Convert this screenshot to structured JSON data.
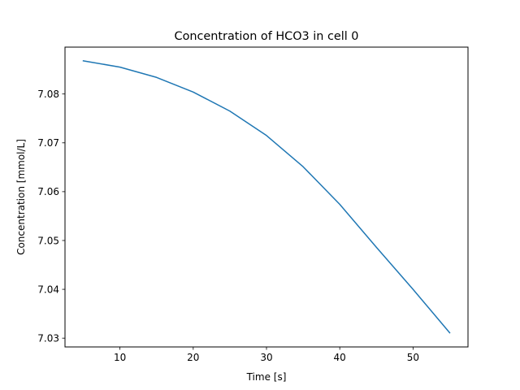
{
  "chart_data": {
    "type": "line",
    "title": "Concentration of HCO3 in cell 0",
    "xlabel": "Time [s]",
    "ylabel": "Concentration [mmol/L]",
    "xlim": [
      2.5,
      57.5
    ],
    "ylim": [
      7.0282,
      7.0896
    ],
    "xticks": [
      10,
      20,
      30,
      40,
      50
    ],
    "yticks": [
      7.03,
      7.04,
      7.05,
      7.06,
      7.07,
      7.08
    ],
    "ytick_decimals": 2,
    "grid": false,
    "legend": "none",
    "series": [
      {
        "color": "#1f77b4",
        "x": [
          5,
          10,
          15,
          20,
          25,
          30,
          35,
          40,
          45,
          50,
          55
        ],
        "y": [
          7.0868,
          7.0855,
          7.0834,
          7.0804,
          7.0765,
          7.0715,
          7.0651,
          7.0574,
          7.0486,
          7.04,
          7.0311
        ]
      }
    ]
  }
}
